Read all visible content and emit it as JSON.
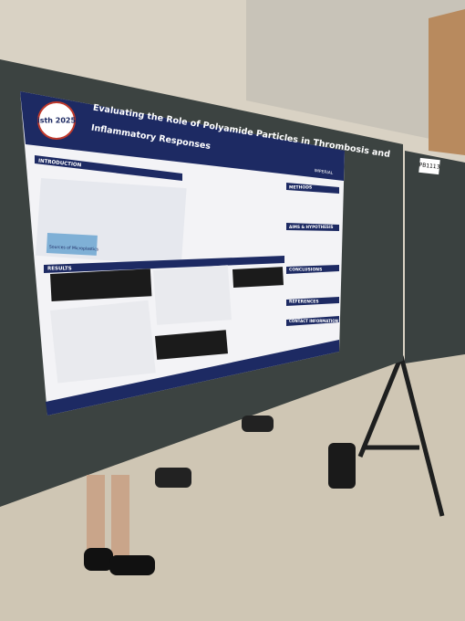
{
  "poster": {
    "title_lines": [
      "Evaluating the Role of Polyamide Particles in Thrombosis and",
      "Inflammatory Responses"
    ],
    "logo": "isth 2025",
    "institution": "IMPERIAL",
    "sections": [
      "INTRODUCTION",
      "RESULTS",
      "METHODS",
      "AIMS & HYPOTHESIS",
      "CONCLUSIONS",
      "REFERENCES",
      "CONTACT INFORMATION"
    ],
    "figure_caption": "Sources of Microplastics"
  },
  "board_number": "PB1113"
}
